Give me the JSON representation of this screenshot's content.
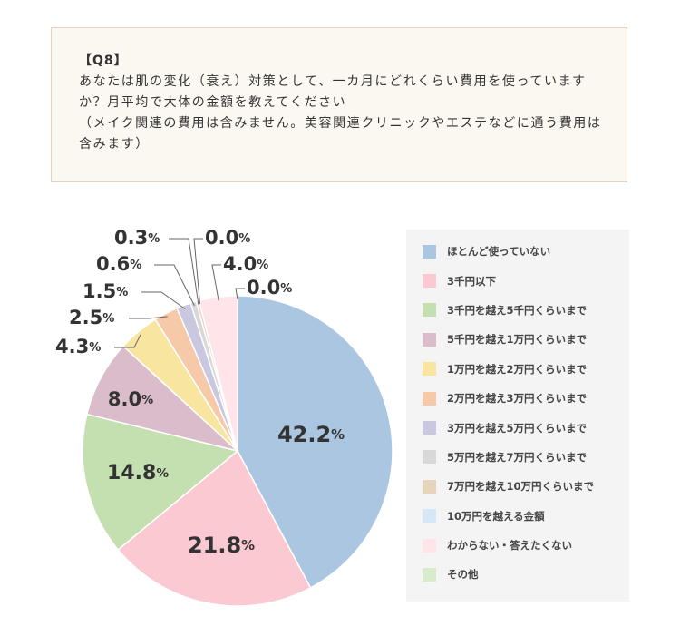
{
  "question": {
    "label": "【Q8】",
    "text": "あなたは肌の変化（衰え）対策として、一カ月にどれくらい費用を使っていますか？月平均で大体の金額を教えてください",
    "note": "（メイク関連の費用は含みません。美容関連クリニックやエステなどに通う費用は含みます）"
  },
  "chart_data": {
    "type": "pie",
    "title": "",
    "start_angle_deg": 0,
    "direction": "clockwise",
    "value_unit": "%",
    "legend_position": "right",
    "slices": [
      {
        "label": "ほとんど使っていない",
        "value": 42.2,
        "display": "42.2",
        "color": "#aac6e0"
      },
      {
        "label": "3千円以下",
        "value": 21.8,
        "display": "21.8",
        "color": "#fbc9d1"
      },
      {
        "label": "3千円を越え5千円くらいまで",
        "value": 14.8,
        "display": "14.8",
        "color": "#c5e0b0"
      },
      {
        "label": "5千円を越え1万円くらいまで",
        "value": 8.0,
        "display": "8.0",
        "color": "#dbbccb"
      },
      {
        "label": "1万円を越え2万円くらいまで",
        "value": 4.3,
        "display": "4.3",
        "color": "#f8e6a0"
      },
      {
        "label": "2万円を越え3万円くらいまで",
        "value": 2.5,
        "display": "2.5",
        "color": "#f6caa8"
      },
      {
        "label": "3万円を越え5万円くらいまで",
        "value": 1.5,
        "display": "1.5",
        "color": "#cac8e0"
      },
      {
        "label": "5万円を越え7万円くらいまで",
        "value": 0.6,
        "display": "0.6",
        "color": "#d8d8d8"
      },
      {
        "label": "7万円を越え10万円くらいまで",
        "value": 0.3,
        "display": "0.3",
        "color": "#e6d4bc"
      },
      {
        "label": "10万円を越える金額",
        "value": 0.0,
        "display": "0.0",
        "color": "#d6e8f6"
      },
      {
        "label": "わからない・答えたくない",
        "value": 4.0,
        "display": "4.0",
        "color": "#ffe4ea"
      },
      {
        "label": "その他",
        "value": 0.0,
        "display": "0.0",
        "color": "#d8eccc"
      }
    ]
  }
}
